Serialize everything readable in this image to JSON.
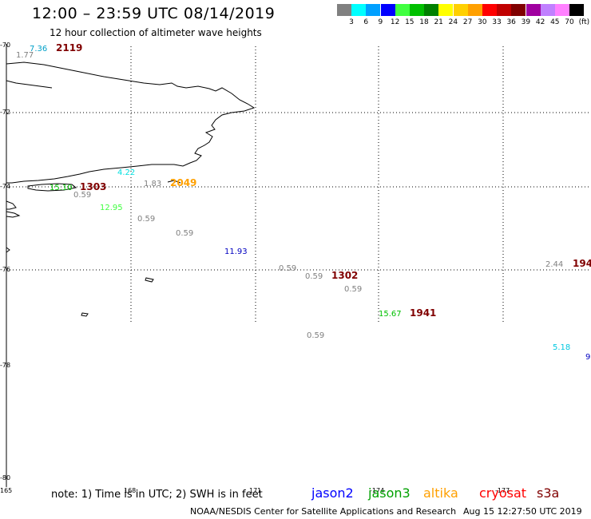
{
  "header": {
    "title": "12:00 – 23:59 UTC 08/14/2019",
    "subtitle": "12 hour collection of altimeter wave heights"
  },
  "color_scale": {
    "unit": "(ft)",
    "swatches": [
      {
        "label": "3",
        "color": "#808080"
      },
      {
        "label": "6",
        "color": "#00ffff"
      },
      {
        "label": "9",
        "color": "#00a0ff"
      },
      {
        "label": "12",
        "color": "#0000ff"
      },
      {
        "label": "15",
        "color": "#40ff40"
      },
      {
        "label": "18",
        "color": "#00c000"
      },
      {
        "label": "21",
        "color": "#008000"
      },
      {
        "label": "24",
        "color": "#ffff00"
      },
      {
        "label": "27",
        "color": "#ffd000"
      },
      {
        "label": "30",
        "color": "#ffa000"
      },
      {
        "label": "33",
        "color": "#ff0000"
      },
      {
        "label": "36",
        "color": "#c00000"
      },
      {
        "label": "39",
        "color": "#800000"
      },
      {
        "label": "42",
        "color": "#a000a0"
      },
      {
        "label": "45",
        "color": "#c080ff"
      },
      {
        "label": "70",
        "color": "#ff80ff"
      },
      {
        "label": "",
        "color": "#000000"
      }
    ]
  },
  "axes": {
    "lat_labels": [
      "-70",
      "-72",
      "-74",
      "-76",
      "-78",
      "-80"
    ],
    "lon_labels": [
      "165",
      "168",
      "171",
      "-174",
      "-177"
    ]
  },
  "observations": [
    {
      "text": "7.36",
      "color": "#00a0c8"
    },
    {
      "text": "1.77",
      "color": "#808080"
    },
    {
      "text": "2119",
      "color": "#800000"
    },
    {
      "text": "4.22",
      "color": "#00e0e0"
    },
    {
      "text": "15.10",
      "color": "#00c000"
    },
    {
      "text": "1303",
      "color": "#800000"
    },
    {
      "text": "0.59",
      "color": "#808080"
    },
    {
      "text": "1.83",
      "color": "#808080"
    },
    {
      "text": "2049",
      "color": "#ffa000"
    },
    {
      "text": "12.95",
      "color": "#40ff40"
    },
    {
      "text": "0.59",
      "color": "#808080"
    },
    {
      "text": "0.59",
      "color": "#808080"
    },
    {
      "text": "11.93",
      "color": "#0000c0"
    },
    {
      "text": "0.59",
      "color": "#808080"
    },
    {
      "text": "0.59",
      "color": "#808080"
    },
    {
      "text": "1302",
      "color": "#800000"
    },
    {
      "text": "0.59",
      "color": "#808080"
    },
    {
      "text": "15.67",
      "color": "#00c000"
    },
    {
      "text": "1941",
      "color": "#800000"
    },
    {
      "text": "0.59",
      "color": "#808080"
    },
    {
      "text": "2.44",
      "color": "#808080"
    },
    {
      "text": "194",
      "color": "#800000"
    },
    {
      "text": "5.18",
      "color": "#00c8e0"
    },
    {
      "text": "9",
      "color": "#0000c0"
    }
  ],
  "footer": {
    "note": "note:  1) Time is in UTC;  2) SWH is in feet",
    "satellites": [
      {
        "name": "jason2",
        "color": "#0000ff"
      },
      {
        "name": "jason3",
        "color": "#00a000"
      },
      {
        "name": "altika",
        "color": "#ffa000"
      },
      {
        "name": "cryosat",
        "color": "#ff0000"
      },
      {
        "name": "s3a",
        "color": "#800000"
      }
    ],
    "credit": "NOAA/NESDIS Center for Satellite Applications and Research",
    "timestamp": "Aug 15 12:27:50 UTC 2019"
  }
}
